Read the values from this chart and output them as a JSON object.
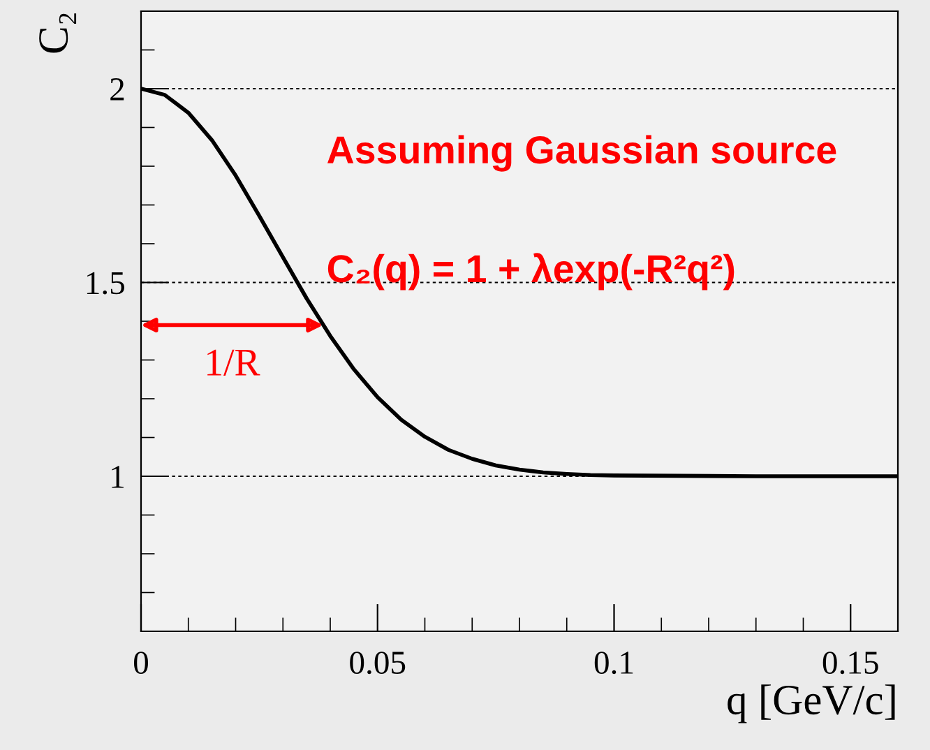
{
  "chart_data": {
    "type": "line",
    "xlabel": "q [GeV/c]",
    "ylabel": "C₂",
    "x": [
      0,
      0.005,
      0.01,
      0.015,
      0.02,
      0.025,
      0.03,
      0.035,
      0.04,
      0.045,
      0.05,
      0.055,
      0.06,
      0.065,
      0.07,
      0.075,
      0.08,
      0.085,
      0.09,
      0.095,
      0.1,
      0.13,
      0.16
    ],
    "series": [
      {
        "color": "#000000",
        "values": [
          2.0,
          1.984,
          1.938,
          1.867,
          1.776,
          1.672,
          1.565,
          1.459,
          1.362,
          1.276,
          1.204,
          1.146,
          1.102,
          1.068,
          1.045,
          1.028,
          1.017,
          1.01,
          1.006,
          1.003,
          1.002,
          1.0,
          1.0
        ]
      }
    ],
    "xlim": [
      0,
      0.16
    ],
    "ylim": [
      0.6,
      2.2
    ],
    "xticks": [
      0,
      {
        "value": 0.01,
        "label": null
      },
      {
        "value": 0.02,
        "label": null
      },
      {
        "value": 0.03,
        "label": null
      },
      {
        "value": 0.04,
        "label": null
      },
      0.05,
      {
        "value": 0.06,
        "label": null
      },
      {
        "value": 0.07,
        "label": null
      },
      {
        "value": 0.08,
        "label": null
      },
      {
        "value": 0.09,
        "label": null
      },
      0.1,
      {
        "value": 0.11,
        "label": null
      },
      {
        "value": 0.12,
        "label": null
      },
      {
        "value": 0.13,
        "label": null
      },
      {
        "value": 0.14,
        "label": null
      },
      0.15
    ],
    "yticks": [
      {
        "value": 0.7,
        "label": null
      },
      {
        "value": 0.8,
        "label": null
      },
      {
        "value": 0.9,
        "label": null
      },
      1,
      {
        "value": 1.1,
        "label": null
      },
      {
        "value": 1.2,
        "label": null
      },
      {
        "value": 1.3,
        "label": null
      },
      {
        "value": 1.4,
        "label": null
      },
      1.5,
      {
        "value": 1.6,
        "label": null
      },
      {
        "value": 1.7,
        "label": null
      },
      {
        "value": 1.8,
        "label": null
      },
      {
        "value": 1.9,
        "label": null
      },
      2,
      {
        "value": 2.1,
        "label": null
      }
    ],
    "grid": "y",
    "line_style": "solid",
    "marker": "none",
    "annotations": [
      "Assuming Gaussian source",
      "C₂(q) = 1 + λexp(-R²q²)",
      {
        "text": "1/R",
        "x": 0.0385,
        "y": 1.39
      }
    ]
  }
}
